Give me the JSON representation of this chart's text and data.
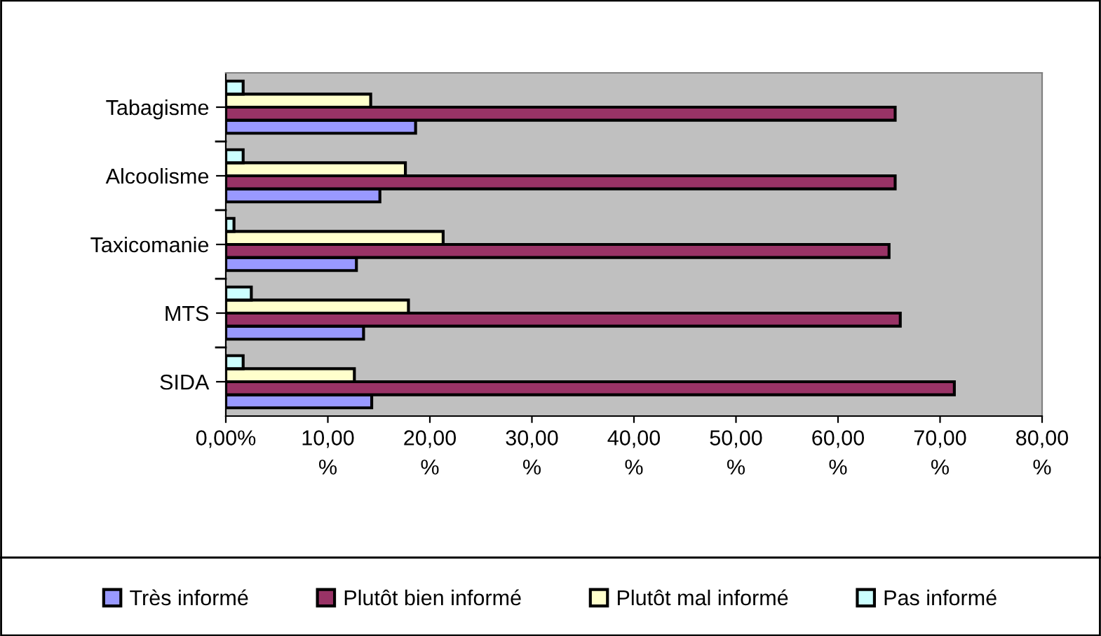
{
  "chart_data": {
    "type": "bar",
    "orientation": "horizontal",
    "categories": [
      "Tabagisme",
      "Alcoolisme",
      "Taxicomanie",
      "MTS",
      "SIDA"
    ],
    "series": [
      {
        "name": "Très informé",
        "color": "#9999ff",
        "values": [
          18.6,
          15.1,
          12.8,
          13.5,
          14.3
        ]
      },
      {
        "name": "Plutôt bien informé",
        "color": "#993366",
        "values": [
          65.6,
          65.6,
          65.0,
          66.1,
          71.4
        ]
      },
      {
        "name": "Plutôt mal informé",
        "color": "#ffffcc",
        "values": [
          14.2,
          17.6,
          21.3,
          17.9,
          12.6
        ]
      },
      {
        "name": "Pas informé",
        "color": "#ccffff",
        "values": [
          1.7,
          1.7,
          0.8,
          2.5,
          1.7
        ]
      }
    ],
    "xlim": [
      0,
      80
    ],
    "xticks": [
      {
        "value": 0,
        "label": "0,00%"
      },
      {
        "value": 10,
        "label": "10,00\n%"
      },
      {
        "value": 20,
        "label": "20,00\n%"
      },
      {
        "value": 30,
        "label": "30,00\n%"
      },
      {
        "value": 40,
        "label": "40,00\n%"
      },
      {
        "value": 50,
        "label": "50,00\n%"
      },
      {
        "value": 60,
        "label": "60,00\n%"
      },
      {
        "value": 70,
        "label": "70,00\n%"
      },
      {
        "value": 80,
        "label": "80,00\n%"
      }
    ],
    "grid": false,
    "legend": "bottom"
  }
}
